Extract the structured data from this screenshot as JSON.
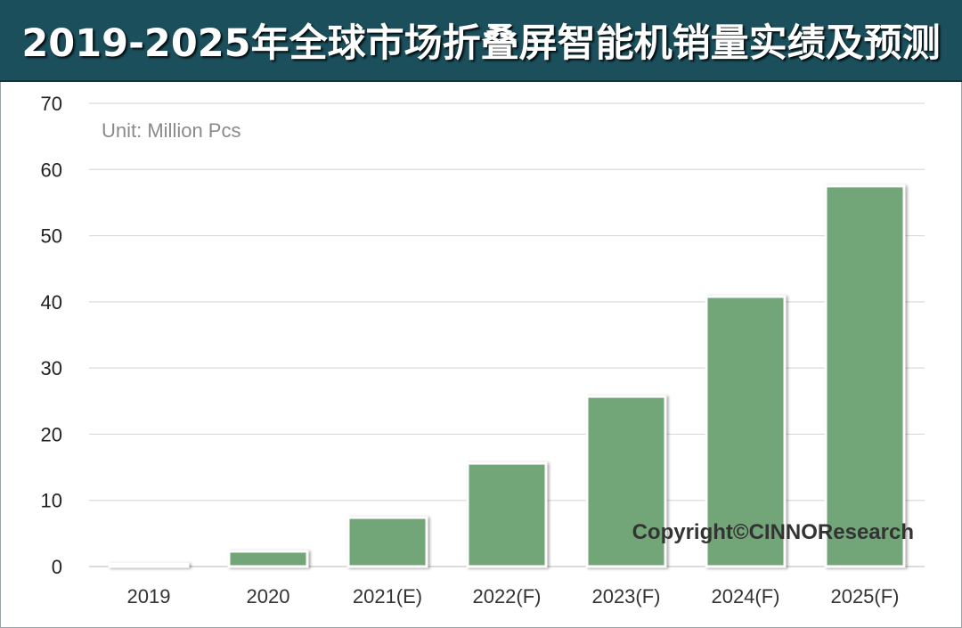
{
  "chart_data": {
    "type": "bar",
    "title": "2019-2025年全球市场折叠屏智能机销量实绩及预测",
    "unit_label": "Unit: Million Pcs",
    "copyright": "Copyright©CINNOResearch",
    "categories": [
      "2019",
      "2020",
      "2021(E)",
      "2022(F)",
      "2023(F)",
      "2024(F)",
      "2025(F)"
    ],
    "values": [
      0.4,
      2.3,
      7.4,
      15.6,
      25.7,
      40.8,
      57.5
    ],
    "ylim": [
      0,
      70
    ],
    "yticks": [
      "0",
      "10",
      "20",
      "30",
      "40",
      "50",
      "60",
      "70"
    ],
    "grid": true,
    "colors": {
      "bar": "#72a678",
      "bar_first": "#e6e6e6",
      "header_bg": "#1b4f5c"
    }
  }
}
